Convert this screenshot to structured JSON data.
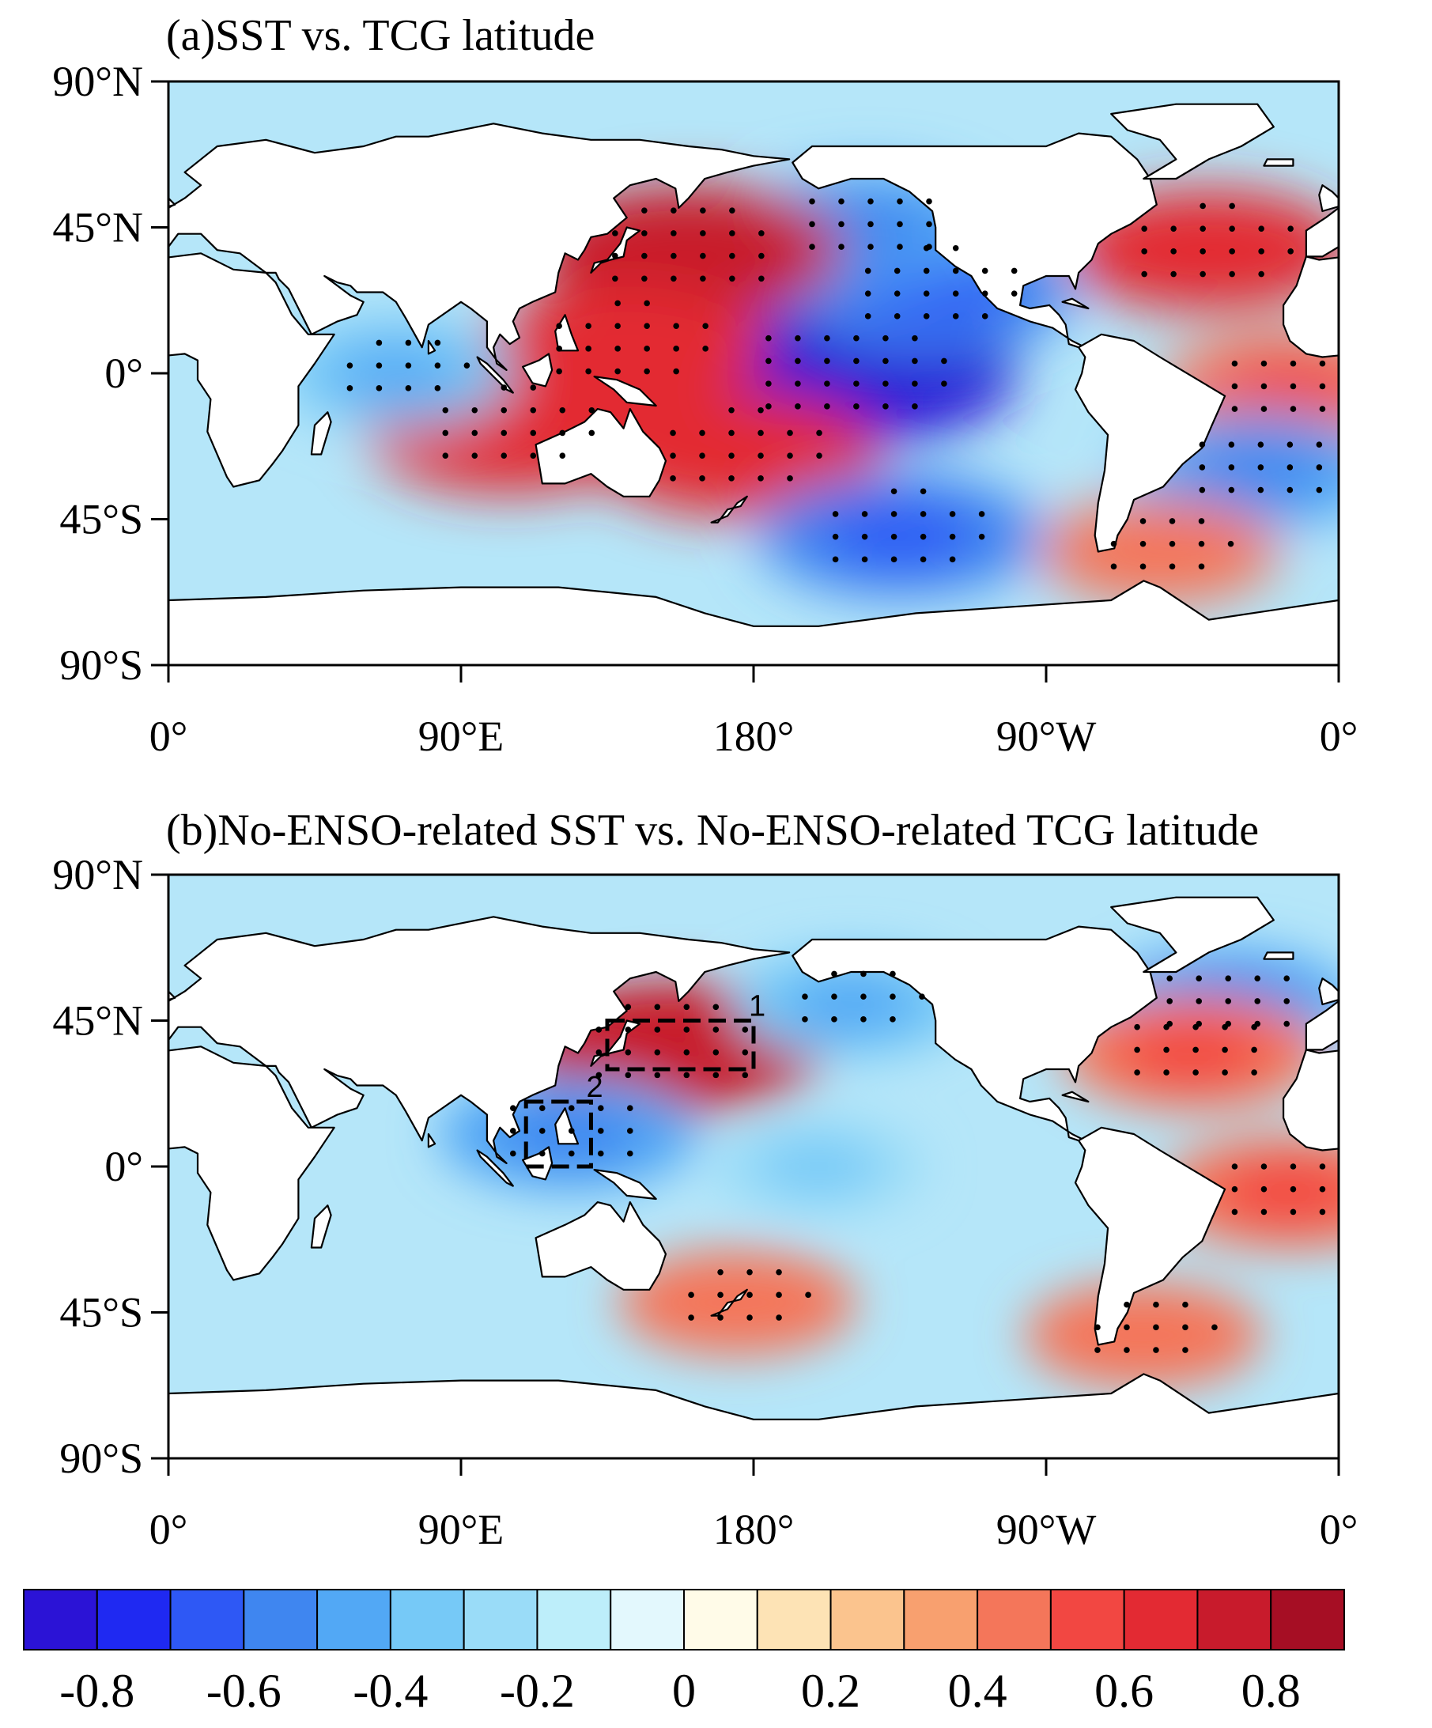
{
  "colors": {
    "palette": [
      "#2b13d6",
      "#1f29f2",
      "#2e58f5",
      "#3f86f0",
      "#52a8f5",
      "#76c9f7",
      "#9adcf8",
      "#bdeefa",
      "#e3f8fd",
      "#fffbe8",
      "#fde3b5",
      "#fbc48e",
      "#f8a06f",
      "#f4765a",
      "#f24742",
      "#e32a33",
      "#c81b2c",
      "#a60e24"
    ],
    "land": "#ffffff",
    "coast": "#000000"
  },
  "colorbar": {
    "labels": [
      "-0.8",
      "-0.6",
      "-0.4",
      "-0.2",
      "0",
      "0.2",
      "0.4",
      "0.6",
      "0.8"
    ]
  },
  "chart_data": [
    {
      "type": "heatmap",
      "subtype": "global correlation map",
      "title": "(a)SST vs. TCG latitude",
      "xticks": [
        "0°",
        "90°E",
        "180°",
        "90°W",
        "0°"
      ],
      "yticks": [
        "90°N",
        "45°N",
        "0°",
        "45°S",
        "90°S"
      ],
      "xlim": [
        0,
        360
      ],
      "ylim": [
        -90,
        90
      ],
      "value_range": [
        -0.9,
        0.9
      ],
      "anomalies": [
        {
          "lon": 210,
          "lat": 0,
          "value": -0.8,
          "region": "central-eastern equatorial Pacific"
        },
        {
          "lon": 235,
          "lat": 25,
          "value": -0.6,
          "region": "northeast Pacific"
        },
        {
          "lon": 215,
          "lat": 45,
          "value": -0.5,
          "region": "North Pacific"
        },
        {
          "lon": 160,
          "lat": 38,
          "value": 0.7,
          "region": "Kuroshio extension"
        },
        {
          "lon": 140,
          "lat": 8,
          "value": 0.6,
          "region": "western tropical Pacific"
        },
        {
          "lon": 175,
          "lat": -25,
          "value": 0.6,
          "region": "southwest Pacific"
        },
        {
          "lon": 105,
          "lat": -18,
          "value": 0.6,
          "region": "northwest of Australia"
        },
        {
          "lon": 70,
          "lat": 0,
          "value": -0.4,
          "region": "Indian Ocean"
        },
        {
          "lon": 225,
          "lat": -50,
          "value": -0.6,
          "region": "South Pacific"
        },
        {
          "lon": 320,
          "lat": 38,
          "value": 0.6,
          "region": "North Atlantic"
        },
        {
          "lon": 345,
          "lat": -5,
          "value": 0.5,
          "region": "eastern equatorial Atlantic"
        },
        {
          "lon": 335,
          "lat": -30,
          "value": -0.5,
          "region": "South Atlantic"
        },
        {
          "lon": 305,
          "lat": -55,
          "value": 0.4,
          "region": "Drake Passage"
        }
      ]
    },
    {
      "type": "heatmap",
      "subtype": "global correlation map",
      "title": "(b)No-ENSO-related SST vs. No-ENSO-related TCG latitude",
      "xticks": [
        "0°",
        "90°E",
        "180°",
        "90°W",
        "0°"
      ],
      "yticks": [
        "90°N",
        "45°N",
        "0°",
        "45°S",
        "90°S"
      ],
      "xlim": [
        0,
        360
      ],
      "ylim": [
        -90,
        90
      ],
      "value_range": [
        -0.9,
        0.9
      ],
      "anomalies": [
        {
          "lon": 155,
          "lat": 37,
          "value": 0.7,
          "region": "Kuroshio extension"
        },
        {
          "lon": 123,
          "lat": 10,
          "value": -0.5,
          "region": "Philippine Sea"
        },
        {
          "lon": 210,
          "lat": 50,
          "value": -0.4,
          "region": "Gulf of Alaska"
        },
        {
          "lon": 200,
          "lat": 0,
          "value": -0.3,
          "region": "central Pacific"
        },
        {
          "lon": 325,
          "lat": 50,
          "value": -0.5,
          "region": "subpolar North Atlantic"
        },
        {
          "lon": 315,
          "lat": 35,
          "value": 0.5,
          "region": "North Atlantic"
        },
        {
          "lon": 345,
          "lat": -8,
          "value": 0.5,
          "region": "eastern equatorial Atlantic"
        },
        {
          "lon": 175,
          "lat": -42,
          "value": 0.4,
          "region": "New Zealand"
        },
        {
          "lon": 300,
          "lat": -52,
          "value": 0.4,
          "region": "Patagonia shelf"
        }
      ],
      "boxes": [
        {
          "label": "1",
          "lon": [
            135,
            180
          ],
          "lat": [
            30,
            45
          ]
        },
        {
          "label": "2",
          "lon": [
            110,
            130
          ],
          "lat": [
            0,
            20
          ]
        }
      ]
    }
  ]
}
